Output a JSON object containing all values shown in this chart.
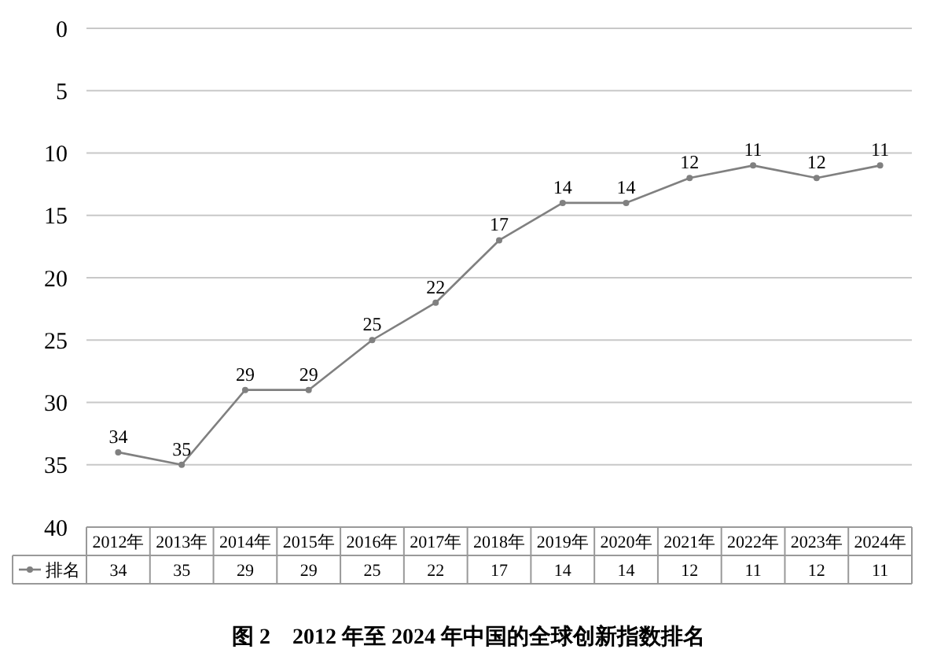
{
  "chart_data": {
    "type": "line",
    "title": "图 2　2012 年至 2024 年中国的全球创新指数排名",
    "categories": [
      "2012年",
      "2013年",
      "2014年",
      "2015年",
      "2016年",
      "2017年",
      "2018年",
      "2019年",
      "2020年",
      "2021年",
      "2022年",
      "2023年",
      "2024年"
    ],
    "series": [
      {
        "name": "排名",
        "color": "#808080",
        "values": [
          34,
          35,
          29,
          29,
          25,
          22,
          17,
          14,
          14,
          12,
          11,
          12,
          11
        ]
      }
    ],
    "annotations": [
      {
        "text": "34",
        "x": "2012年",
        "y": 34
      },
      {
        "text": "35",
        "x": "2013年",
        "y": 35
      },
      {
        "text": "29",
        "x": "2014年",
        "y": 29
      },
      {
        "text": "29",
        "x": "2015年",
        "y": 29
      },
      {
        "text": "25",
        "x": "2016年",
        "y": 25
      },
      {
        "text": "22",
        "x": "2017年",
        "y": 22
      },
      {
        "text": "17",
        "x": "2018年",
        "y": 17
      },
      {
        "text": "14",
        "x": "2019年",
        "y": 14
      },
      {
        "text": "14",
        "x": "2020年",
        "y": 14
      },
      {
        "text": "12",
        "x": "2021年",
        "y": 12
      },
      {
        "text": "11",
        "x": "2022年",
        "y": 11
      },
      {
        "text": "12",
        "x": "2023年",
        "y": 12
      },
      {
        "text": "11",
        "x": "2024年",
        "y": 11
      }
    ],
    "ylim": [
      40,
      0
    ],
    "yticks": [
      0,
      5,
      10,
      15,
      20,
      25,
      30,
      35,
      40
    ],
    "grid": "y",
    "marker": "circle",
    "line_style": "solid",
    "data_labels": true,
    "legend": "bottom"
  }
}
